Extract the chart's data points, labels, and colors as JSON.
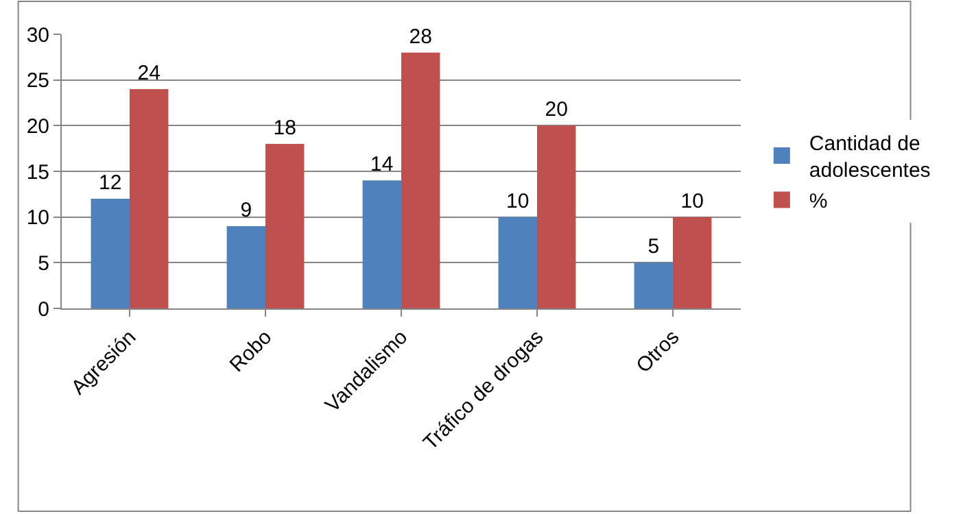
{
  "chart_data": {
    "type": "bar",
    "categories": [
      "Agresión",
      "Robo",
      "Vandalismo",
      "Tráfico de drogas",
      "Otros"
    ],
    "series": [
      {
        "name": "Cantidad de adolescentes",
        "color": "#4f81bd",
        "values": [
          12,
          9,
          14,
          10,
          5
        ]
      },
      {
        "name": "%",
        "color": "#c0504d",
        "values": [
          24,
          18,
          28,
          20,
          10
        ]
      }
    ],
    "ylim": [
      0,
      30
    ],
    "yticks": [
      0,
      5,
      10,
      15,
      20,
      25,
      30
    ],
    "grid": "y",
    "legend": "right",
    "data_labels": true
  }
}
